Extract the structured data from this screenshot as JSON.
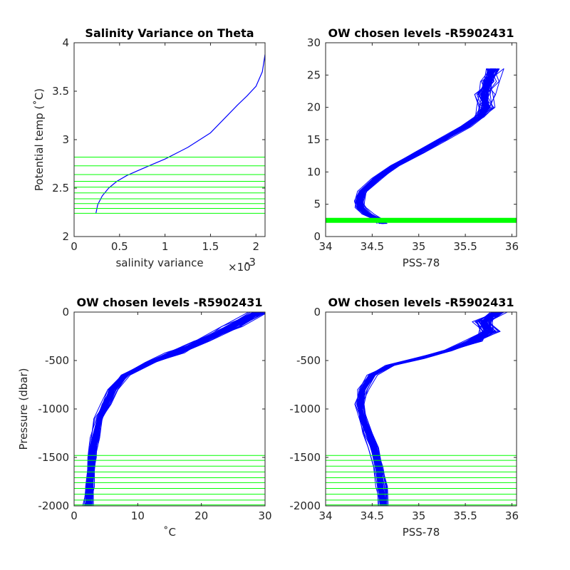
{
  "colors": {
    "profile": "#0000ff",
    "levels": "#00ff00",
    "axes": "#262626",
    "background": "#ffffff"
  },
  "chart_data": [
    {
      "type": "line",
      "title": "Salinity Variance on Theta",
      "xlabel": "salinity variance",
      "x_exponent": "×10",
      "x_exponent_power": "-3",
      "ylabel": "Potential temp (˚C)",
      "xlim": [
        0,
        0.0021
      ],
      "ylim": [
        2,
        4
      ],
      "xticks": [
        0,
        0.0005,
        0.001,
        0.0015,
        0.002
      ],
      "xtick_labels": [
        "0",
        "0.5",
        "1",
        "1.5",
        "2"
      ],
      "yticks": [
        2,
        2.5,
        3,
        3.5,
        4
      ],
      "ytick_labels": [
        "2",
        "2.5",
        "3",
        "3.5",
        "4"
      ],
      "series": [
        {
          "color": "#0000ff",
          "x": [
            0.00024,
            0.00026,
            0.00031,
            0.00038,
            0.00047,
            0.00058,
            0.0007,
            0.00085,
            0.001,
            0.00125,
            0.0015,
            0.0018,
            0.0019,
            0.002,
            0.00207,
            0.0021
          ],
          "y": [
            2.24,
            2.33,
            2.42,
            2.5,
            2.57,
            2.63,
            2.68,
            2.74,
            2.8,
            2.92,
            3.07,
            3.36,
            3.45,
            3.55,
            3.7,
            3.88
          ]
        }
      ],
      "hlines": {
        "color": "#00ff00",
        "y": [
          2.24,
          2.29,
          2.34,
          2.39,
          2.45,
          2.51,
          2.57,
          2.64,
          2.73,
          2.82
        ]
      }
    },
    {
      "type": "line",
      "title": "OW chosen levels -R5902431",
      "xlabel": "PSS-78",
      "ylabel": "",
      "xlim": [
        34,
        36.05
      ],
      "ylim": [
        0,
        30
      ],
      "xticks": [
        34,
        34.5,
        35,
        35.5,
        36
      ],
      "xtick_labels": [
        "34",
        "34.5",
        "35",
        "35.5",
        "36"
      ],
      "yticks": [
        0,
        5,
        10,
        15,
        20,
        25,
        30
      ],
      "ytick_labels": [
        "0",
        "5",
        "10",
        "15",
        "20",
        "25",
        "30"
      ],
      "series": [
        {
          "color": "#0000ff",
          "x": [
            34.62,
            34.55,
            34.45,
            34.38,
            34.36,
            34.4,
            34.55,
            34.75,
            35.0,
            35.25,
            35.5,
            35.65,
            35.72,
            35.7,
            35.75,
            35.8
          ],
          "y": [
            2.0,
            2.8,
            3.5,
            4.5,
            5.5,
            7.0,
            9.0,
            11.0,
            13.0,
            15.0,
            17.0,
            18.5,
            20.0,
            22.0,
            24.0,
            26.0
          ]
        }
      ],
      "hlines": {
        "color": "#00ff00",
        "y": [
          2.24,
          2.3,
          2.36,
          2.42,
          2.48,
          2.54,
          2.6,
          2.66,
          2.72,
          2.78
        ]
      }
    },
    {
      "type": "line",
      "title": "OW chosen levels -R5902431",
      "xlabel": "˚C",
      "ylabel": "Pressure (dbar)",
      "xlim": [
        0,
        30
      ],
      "ylim": [
        -2000,
        0
      ],
      "xticks": [
        0,
        10,
        20,
        30
      ],
      "xtick_labels": [
        "0",
        "10",
        "20",
        "30"
      ],
      "yticks": [
        -2000,
        -1500,
        -1000,
        -500,
        0
      ],
      "ytick_labels": [
        "-2000",
        "-1500",
        "-1000",
        "-500",
        "0"
      ],
      "series": [
        {
          "color": "#0000ff",
          "x": [
            2.2,
            2.4,
            2.8,
            3.3,
            4.0,
            5.0,
            6.0,
            8.0,
            12.0,
            16.0,
            20.0,
            25.0,
            29.0
          ],
          "y": [
            -2000,
            -1800,
            -1500,
            -1300,
            -1100,
            -950,
            -800,
            -650,
            -520,
            -420,
            -300,
            -150,
            0
          ]
        }
      ],
      "hlines": {
        "color": "#00ff00",
        "y": [
          -1480,
          -1530,
          -1590,
          -1650,
          -1710,
          -1760,
          -1820,
          -1880,
          -1940,
          -1990
        ]
      }
    },
    {
      "type": "line",
      "title": "OW chosen levels -R5902431",
      "xlabel": "PSS-78",
      "ylabel": "",
      "xlim": [
        34,
        36.05
      ],
      "ylim": [
        -2000,
        0
      ],
      "xticks": [
        34,
        34.5,
        35,
        35.5,
        36
      ],
      "xtick_labels": [
        "34",
        "34.5",
        "35",
        "35.5",
        "36"
      ],
      "yticks": [
        -2000,
        -1500,
        -1000,
        -500,
        0
      ],
      "ytick_labels": [
        "-2000",
        "-1500",
        "-1000",
        "-500",
        "0"
      ],
      "series": [
        {
          "color": "#0000ff",
          "x": [
            34.62,
            34.6,
            34.57,
            34.52,
            34.46,
            34.4,
            34.37,
            34.4,
            34.5,
            34.7,
            35.0,
            35.3,
            35.6,
            35.75,
            35.7,
            35.85
          ],
          "y": [
            -2000,
            -1800,
            -1600,
            -1400,
            -1250,
            -1100,
            -950,
            -800,
            -650,
            -550,
            -480,
            -400,
            -300,
            -200,
            -100,
            0
          ]
        }
      ],
      "hlines": {
        "color": "#00ff00",
        "y": [
          -1480,
          -1530,
          -1590,
          -1650,
          -1710,
          -1760,
          -1820,
          -1880,
          -1940,
          -1990
        ]
      }
    }
  ]
}
